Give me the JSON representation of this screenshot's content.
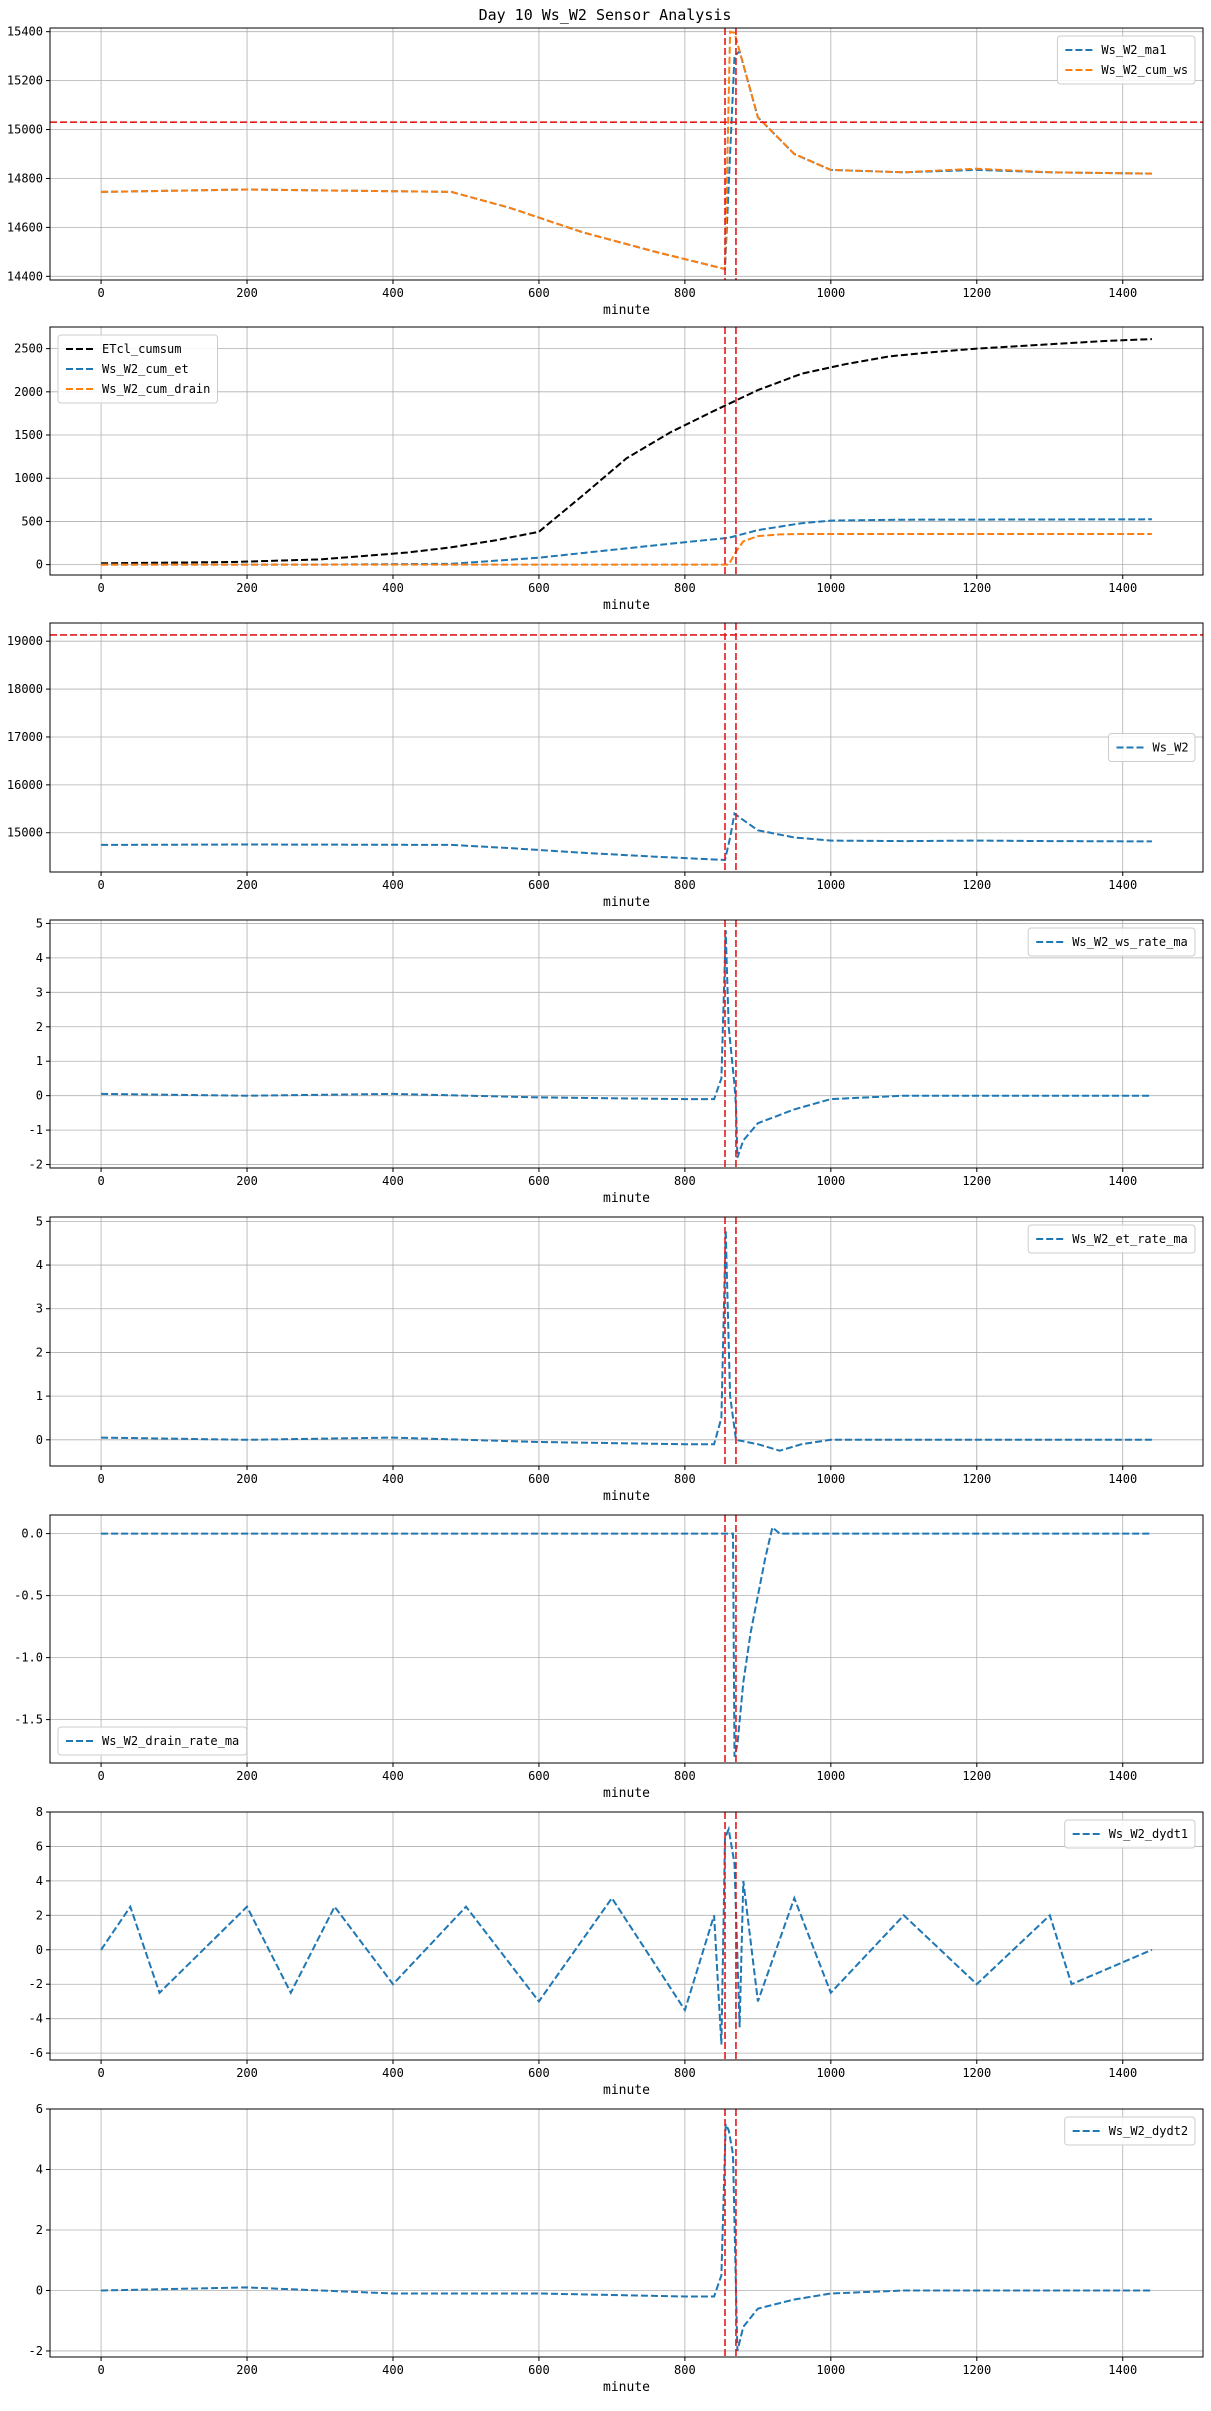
{
  "figure": {
    "title": "Day 10 Ws_W2 Sensor Analysis"
  },
  "chart_data": [
    {
      "type": "line",
      "xlabel": "minute",
      "xlim": [
        -70,
        1510
      ],
      "ylim": [
        14385,
        15415
      ],
      "xticks": [
        0,
        200,
        400,
        600,
        800,
        1000,
        1200,
        1400
      ],
      "yticks": [
        14400,
        14600,
        14800,
        15000,
        15200,
        15400
      ],
      "vlines": [
        855,
        870
      ],
      "hlines": [
        15030
      ],
      "legend": "top-right",
      "series": [
        {
          "name": "Ws_W2_ma1",
          "color": "#1f77b4",
          "style": "dashed",
          "x": [
            0,
            200,
            480,
            560,
            660,
            760,
            855,
            862,
            868,
            875,
            900,
            950,
            1000,
            1100,
            1200,
            1300,
            1440
          ],
          "y": [
            14745,
            14755,
            14745,
            14680,
            14580,
            14500,
            14430,
            14900,
            15300,
            15320,
            15050,
            14900,
            14835,
            14825,
            14835,
            14825,
            14820
          ]
        },
        {
          "name": "Ws_W2_cum_ws",
          "color": "#ff7f0e",
          "style": "dashed",
          "x": [
            0,
            200,
            480,
            560,
            660,
            760,
            855,
            862,
            868,
            875,
            900,
            950,
            1000,
            1100,
            1200,
            1300,
            1440
          ],
          "y": [
            14745,
            14755,
            14745,
            14680,
            14580,
            14500,
            14430,
            15400,
            15395,
            15320,
            15050,
            14900,
            14835,
            14825,
            14840,
            14825,
            14820
          ]
        }
      ]
    },
    {
      "type": "line",
      "xlabel": "minute",
      "xlim": [
        -70,
        1510
      ],
      "ylim": [
        -120,
        2750
      ],
      "xticks": [
        0,
        200,
        400,
        600,
        800,
        1000,
        1200,
        1400
      ],
      "yticks": [
        0,
        500,
        1000,
        1500,
        2000,
        2500
      ],
      "vlines": [
        855,
        870
      ],
      "hlines": [],
      "legend": "top-left",
      "series": [
        {
          "name": "ETcl_cumsum",
          "color": "#000000",
          "style": "dashed",
          "x": [
            0,
            180,
            300,
            360,
            420,
            480,
            540,
            600,
            660,
            720,
            780,
            840,
            900,
            960,
            1020,
            1080,
            1140,
            1200,
            1260,
            1320,
            1380,
            1440
          ],
          "y": [
            15,
            30,
            60,
            100,
            140,
            200,
            280,
            380,
            800,
            1230,
            1530,
            1780,
            2020,
            2210,
            2320,
            2410,
            2460,
            2500,
            2530,
            2560,
            2590,
            2610
          ]
        },
        {
          "name": "Ws_W2_cum_et",
          "color": "#1f77b4",
          "style": "dashed",
          "x": [
            0,
            300,
            480,
            600,
            700,
            800,
            860,
            900,
            960,
            1000,
            1100,
            1440
          ],
          "y": [
            0,
            0,
            10,
            80,
            170,
            260,
            310,
            400,
            480,
            510,
            520,
            525
          ]
        },
        {
          "name": "Ws_W2_cum_drain",
          "color": "#ff7f0e",
          "style": "dashed",
          "x": [
            0,
            860,
            870,
            880,
            900,
            930,
            960,
            1440
          ],
          "y": [
            0,
            0,
            150,
            270,
            330,
            350,
            355,
            355
          ]
        }
      ]
    },
    {
      "type": "line",
      "xlabel": "minute",
      "xlim": [
        -70,
        1510
      ],
      "ylim": [
        14180,
        19380
      ],
      "xticks": [
        0,
        200,
        400,
        600,
        800,
        1000,
        1200,
        1400
      ],
      "yticks": [
        15000,
        16000,
        17000,
        18000,
        19000
      ],
      "vlines": [
        855,
        870
      ],
      "hlines": [
        19130
      ],
      "legend": "center-right",
      "series": [
        {
          "name": "Ws_W2",
          "color": "#1f77b4",
          "style": "dashed",
          "x": [
            0,
            200,
            480,
            560,
            660,
            760,
            855,
            862,
            868,
            875,
            900,
            950,
            1000,
            1100,
            1200,
            1300,
            1440
          ],
          "y": [
            14745,
            14755,
            14745,
            14680,
            14580,
            14500,
            14430,
            14900,
            15400,
            15320,
            15050,
            14900,
            14835,
            14825,
            14835,
            14825,
            14820
          ]
        }
      ]
    },
    {
      "type": "line",
      "xlabel": "minute",
      "xlim": [
        -70,
        1510
      ],
      "ylim": [
        -2.1,
        5.1
      ],
      "xticks": [
        0,
        200,
        400,
        600,
        800,
        1000,
        1200,
        1400
      ],
      "yticks": [
        -2,
        -1,
        0,
        1,
        2,
        3,
        4,
        5
      ],
      "vlines": [
        855,
        870
      ],
      "hlines": [],
      "legend": "top-right",
      "series": [
        {
          "name": "Ws_W2_ws_rate_ma",
          "color": "#1f77b4",
          "style": "dashed",
          "x": [
            0,
            200,
            400,
            600,
            800,
            840,
            850,
            856,
            860,
            868,
            870,
            872,
            880,
            900,
            950,
            1000,
            1100,
            1440
          ],
          "y": [
            0.05,
            0,
            0.05,
            -0.05,
            -0.1,
            -0.1,
            0.5,
            4.8,
            2.0,
            0.3,
            -0.3,
            -1.8,
            -1.3,
            -0.8,
            -0.4,
            -0.1,
            0,
            0
          ]
        }
      ]
    },
    {
      "type": "line",
      "xlabel": "minute",
      "xlim": [
        -70,
        1510
      ],
      "ylim": [
        -0.6,
        5.1
      ],
      "xticks": [
        0,
        200,
        400,
        600,
        800,
        1000,
        1200,
        1400
      ],
      "yticks": [
        0,
        1,
        2,
        3,
        4,
        5
      ],
      "vlines": [
        855,
        870
      ],
      "hlines": [],
      "legend": "top-right",
      "series": [
        {
          "name": "Ws_W2_et_rate_ma",
          "color": "#1f77b4",
          "style": "dashed",
          "x": [
            0,
            200,
            400,
            600,
            800,
            840,
            850,
            856,
            862,
            870,
            900,
            930,
            960,
            1000,
            1100,
            1440
          ],
          "y": [
            0.05,
            0,
            0.05,
            -0.05,
            -0.1,
            -0.1,
            0.5,
            4.8,
            1.0,
            0,
            -0.1,
            -0.25,
            -0.1,
            0,
            0,
            0
          ]
        }
      ]
    },
    {
      "type": "line",
      "xlabel": "minute",
      "xlim": [
        -70,
        1510
      ],
      "ylim": [
        -1.85,
        0.15
      ],
      "xticks": [
        0,
        200,
        400,
        600,
        800,
        1000,
        1200,
        1400
      ],
      "yticks": [
        -1.5,
        -1.0,
        -0.5,
        0.0
      ],
      "vlines": [
        855,
        870
      ],
      "hlines": [],
      "legend": "bottom-left",
      "series": [
        {
          "name": "Ws_W2_drain_rate_ma",
          "color": "#1f77b4",
          "style": "dashed",
          "x": [
            0,
            866,
            868,
            872,
            880,
            890,
            900,
            910,
            920,
            930,
            1440
          ],
          "y": [
            0,
            0,
            -1.8,
            -1.7,
            -1.2,
            -0.8,
            -0.5,
            -0.2,
            0.05,
            0,
            0
          ]
        }
      ]
    },
    {
      "type": "line",
      "xlabel": "minute",
      "xlim": [
        -70,
        1510
      ],
      "ylim": [
        -6.4,
        8.0
      ],
      "xticks": [
        0,
        200,
        400,
        600,
        800,
        1000,
        1200,
        1400
      ],
      "yticks": [
        -6,
        -4,
        -2,
        0,
        2,
        4,
        6,
        8
      ],
      "vlines": [
        855,
        870
      ],
      "hlines": [],
      "legend": "top-right",
      "series": [
        {
          "name": "Ws_W2_dydt1",
          "color": "#1f77b4",
          "style": "dashed",
          "x": [
            0,
            40,
            80,
            200,
            260,
            320,
            400,
            500,
            600,
            700,
            800,
            840,
            850,
            855,
            860,
            868,
            875,
            880,
            900,
            950,
            1000,
            1100,
            1200,
            1300,
            1330,
            1440
          ],
          "y": [
            0,
            2.5,
            -2.5,
            2.5,
            -2.5,
            2.5,
            -2.0,
            2.5,
            -3.0,
            3.0,
            -3.5,
            2.0,
            -5.5,
            6.5,
            7.0,
            5.0,
            -4.5,
            4.0,
            -3.0,
            3.0,
            -2.5,
            2.0,
            -2.0,
            2.0,
            -2.0,
            0
          ]
        }
      ]
    },
    {
      "type": "line",
      "xlabel": "minute",
      "xlim": [
        -70,
        1510
      ],
      "ylim": [
        -2.2,
        6.0
      ],
      "xticks": [
        0,
        200,
        400,
        600,
        800,
        1000,
        1200,
        1400
      ],
      "yticks": [
        -2,
        0,
        2,
        4,
        6
      ],
      "vlines": [
        855,
        870
      ],
      "hlines": [],
      "legend": "top-right",
      "series": [
        {
          "name": "Ws_W2_dydt2",
          "color": "#1f77b4",
          "style": "dashed",
          "x": [
            0,
            200,
            400,
            600,
            800,
            840,
            850,
            856,
            860,
            866,
            870,
            872,
            880,
            900,
            950,
            1000,
            1100,
            1330,
            1440
          ],
          "y": [
            0,
            0.1,
            -0.1,
            -0.1,
            -0.2,
            -0.2,
            0.5,
            5.5,
            5.3,
            4.5,
            0,
            -2.0,
            -1.2,
            -0.6,
            -0.3,
            -0.1,
            0,
            0,
            0
          ]
        }
      ]
    }
  ]
}
